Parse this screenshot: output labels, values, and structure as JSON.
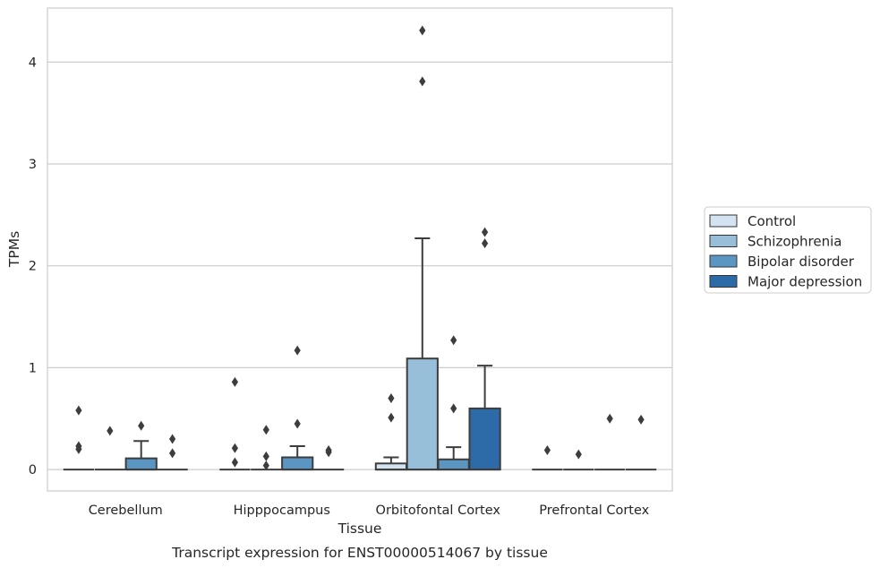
{
  "chart_data": {
    "type": "box",
    "title": "Transcript expression for ENST00000514067 by tissue",
    "xlabel": "Tissue",
    "ylabel": "TPMs",
    "ylim": [
      -0.21,
      4.53
    ],
    "yticks": [
      0,
      1,
      2,
      3,
      4
    ],
    "grid": "horizontal",
    "legend_position": "right",
    "categories": [
      "Cerebellum",
      "Hipppocampus",
      "Orbitofontal Cortex",
      "Prefrontal Cortex"
    ],
    "series": [
      {
        "name": "Control",
        "color": "#d4e3f2",
        "boxes": [
          {
            "q1": 0,
            "median": 0,
            "q3": 0,
            "whisker_low": 0,
            "whisker_high": 0,
            "outliers": [
              0.58,
              0.23,
              0.2
            ]
          },
          {
            "q1": 0,
            "median": 0,
            "q3": 0,
            "whisker_low": 0,
            "whisker_high": 0,
            "outliers": [
              0.86,
              0.21,
              0.07
            ]
          },
          {
            "q1": 0,
            "median": 0,
            "q3": 0.06,
            "whisker_low": 0,
            "whisker_high": 0.12,
            "outliers": [
              0.7,
              0.51
            ]
          },
          {
            "q1": 0,
            "median": 0,
            "q3": 0,
            "whisker_low": 0,
            "whisker_high": 0,
            "outliers": [
              0.19
            ]
          }
        ]
      },
      {
        "name": "Schizophrenia",
        "color": "#98bfd9",
        "boxes": [
          {
            "q1": 0,
            "median": 0,
            "q3": 0,
            "whisker_low": 0,
            "whisker_high": 0,
            "outliers": [
              0.38
            ]
          },
          {
            "q1": 0,
            "median": 0,
            "q3": 0,
            "whisker_low": 0,
            "whisker_high": 0,
            "outliers": [
              0.39,
              0.13,
              0.04
            ]
          },
          {
            "q1": 0,
            "median": 0,
            "q3": 1.09,
            "whisker_low": 0,
            "whisker_high": 2.27,
            "outliers": [
              4.31,
              3.81
            ]
          },
          {
            "q1": 0,
            "median": 0,
            "q3": 0,
            "whisker_low": 0,
            "whisker_high": 0,
            "outliers": [
              0.15
            ]
          }
        ]
      },
      {
        "name": "Bipolar disorder",
        "color": "#5b95c2",
        "boxes": [
          {
            "q1": 0,
            "median": 0,
            "q3": 0.11,
            "whisker_low": 0,
            "whisker_high": 0.28,
            "outliers": [
              0.43
            ]
          },
          {
            "q1": 0,
            "median": 0,
            "q3": 0.12,
            "whisker_low": 0,
            "whisker_high": 0.23,
            "outliers": [
              1.17,
              0.45
            ]
          },
          {
            "q1": 0,
            "median": 0,
            "q3": 0.1,
            "whisker_low": 0,
            "whisker_high": 0.22,
            "outliers": [
              1.27,
              0.6
            ]
          },
          {
            "q1": 0,
            "median": 0,
            "q3": 0,
            "whisker_low": 0,
            "whisker_high": 0,
            "outliers": [
              0.5
            ]
          }
        ]
      },
      {
        "name": "Major depression",
        "color": "#2c6aa8",
        "boxes": [
          {
            "q1": 0,
            "median": 0,
            "q3": 0,
            "whisker_low": 0,
            "whisker_high": 0,
            "outliers": [
              0.3,
              0.16
            ]
          },
          {
            "q1": 0,
            "median": 0,
            "q3": 0,
            "whisker_low": 0,
            "whisker_high": 0,
            "outliers": [
              0.19,
              0.17
            ]
          },
          {
            "q1": 0,
            "median": 0,
            "q3": 0.6,
            "whisker_low": 0,
            "whisker_high": 1.02,
            "outliers": [
              2.33,
              2.22
            ]
          },
          {
            "q1": 0,
            "median": 0,
            "q3": 0,
            "whisker_low": 0,
            "whisker_high": 0,
            "outliers": [
              0.49
            ]
          }
        ]
      }
    ]
  }
}
